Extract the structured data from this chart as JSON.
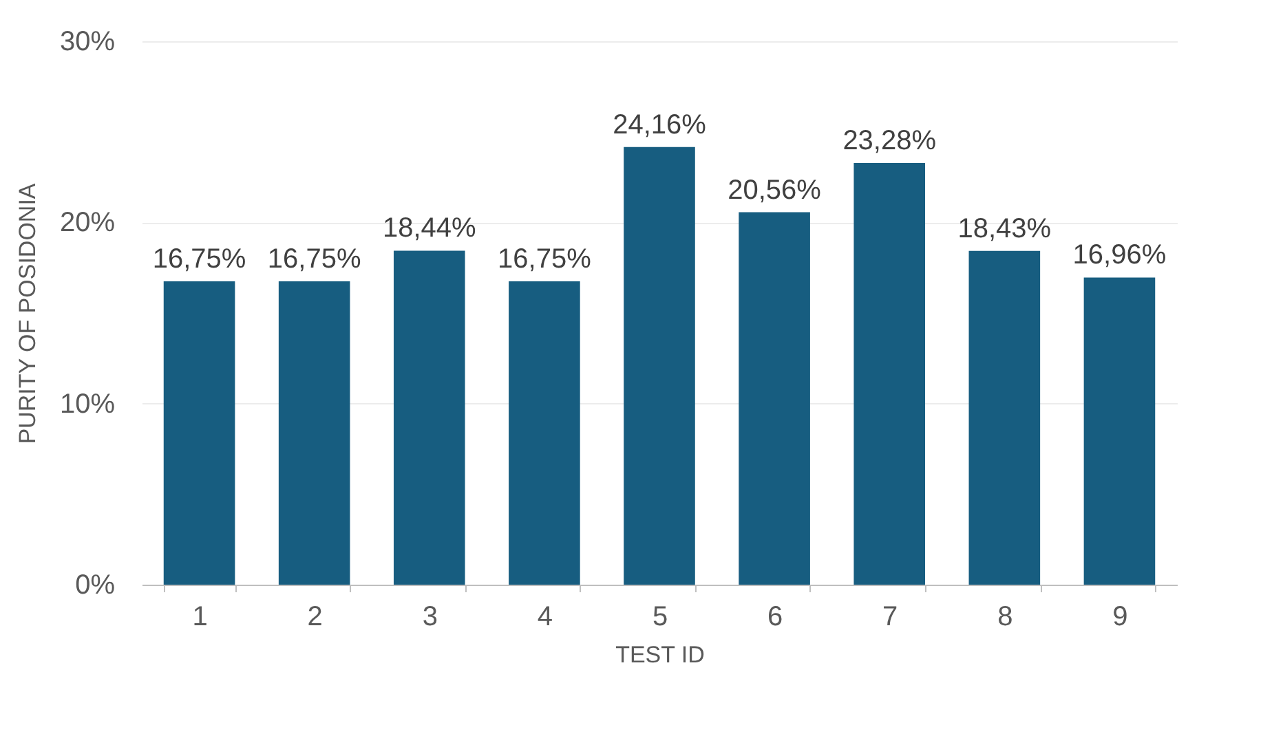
{
  "chart_data": {
    "type": "bar",
    "xlabel": "TEST ID",
    "ylabel": "PURITY OF POSIDONIA",
    "categories": [
      "1",
      "2",
      "3",
      "4",
      "5",
      "6",
      "7",
      "8",
      "9"
    ],
    "values": [
      16.75,
      16.75,
      18.44,
      16.75,
      24.16,
      20.56,
      23.28,
      18.43,
      16.96
    ],
    "value_labels": [
      "16,75%",
      "16,75%",
      "18,44%",
      "16,75%",
      "24,16%",
      "20,56%",
      "23,28%",
      "18,43%",
      "16,96%"
    ],
    "color": "#175d80",
    "ylim": [
      0,
      30
    ],
    "yticks": [
      {
        "value": 0,
        "label": "0%"
      },
      {
        "value": 10,
        "label": "10%"
      },
      {
        "value": 20,
        "label": "20%"
      },
      {
        "value": 30,
        "label": "30%"
      }
    ],
    "grid": "y"
  }
}
